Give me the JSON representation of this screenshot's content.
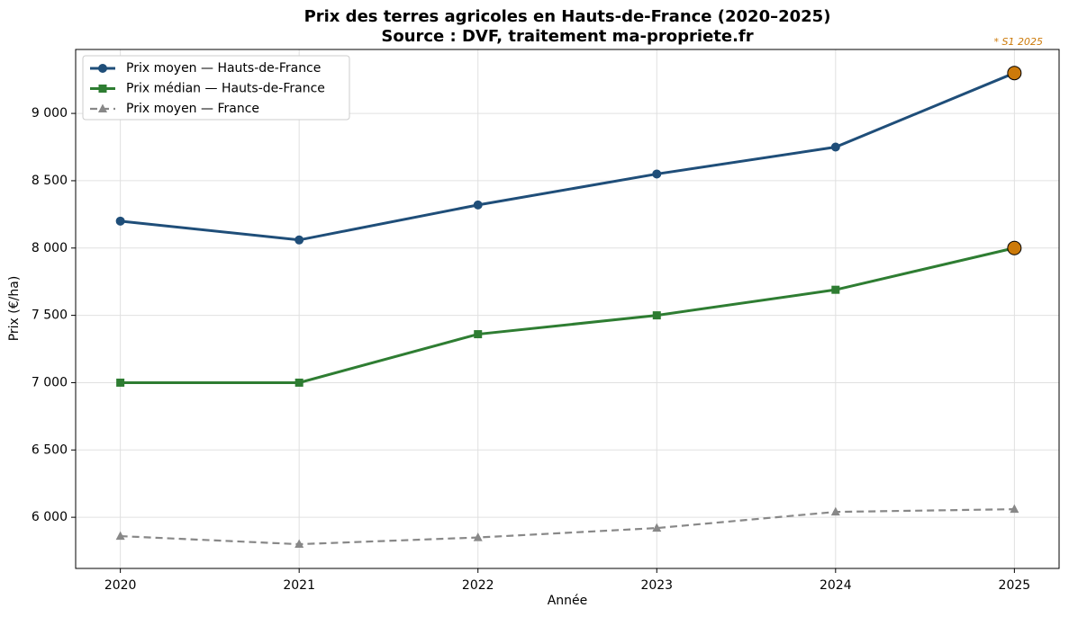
{
  "chart_data": {
    "type": "line",
    "title": "Prix des terres agricoles en Hauts-de-France (2020–2025)",
    "subtitle": "Source : DVF, traitement ma-propriete.fr",
    "annotation": "* S1 2025",
    "highlight_color": "#cc7a0a",
    "x_label": "Année",
    "y_label": "Prix (€/ha)",
    "x": [
      2020,
      2021,
      2022,
      2023,
      2024,
      2025
    ],
    "xlim": [
      2019.75,
      2025.25
    ],
    "xticks": [
      2020,
      2021,
      2022,
      2023,
      2024,
      2025
    ],
    "ylim": [
      5620,
      9475
    ],
    "yticks": [
      {
        "value": 6000,
        "label": "6 000"
      },
      {
        "value": 6500,
        "label": "6 500"
      },
      {
        "value": 7000,
        "label": "7 000"
      },
      {
        "value": 7500,
        "label": "7 500"
      },
      {
        "value": 8000,
        "label": "8 000"
      },
      {
        "value": 8500,
        "label": "8 500"
      },
      {
        "value": 9000,
        "label": "9 000"
      }
    ],
    "grid": true,
    "legend": "upper-left",
    "series": [
      {
        "name": "Prix moyen — Hauts-de-France",
        "color": "#1f4e79",
        "marker": "circle",
        "dash": false,
        "highlight_last": true,
        "values": [
          8200,
          8060,
          8320,
          8550,
          8750,
          9300
        ]
      },
      {
        "name": "Prix médian — Hauts-de-France",
        "color": "#2e7d32",
        "marker": "square",
        "dash": false,
        "highlight_last": true,
        "values": [
          7000,
          7000,
          7360,
          7500,
          7690,
          8000
        ]
      },
      {
        "name": "Prix moyen — France",
        "color": "#888888",
        "marker": "triangle",
        "dash": true,
        "highlight_last": false,
        "values": [
          5860,
          5800,
          5850,
          5920,
          6040,
          6060
        ]
      }
    ]
  }
}
